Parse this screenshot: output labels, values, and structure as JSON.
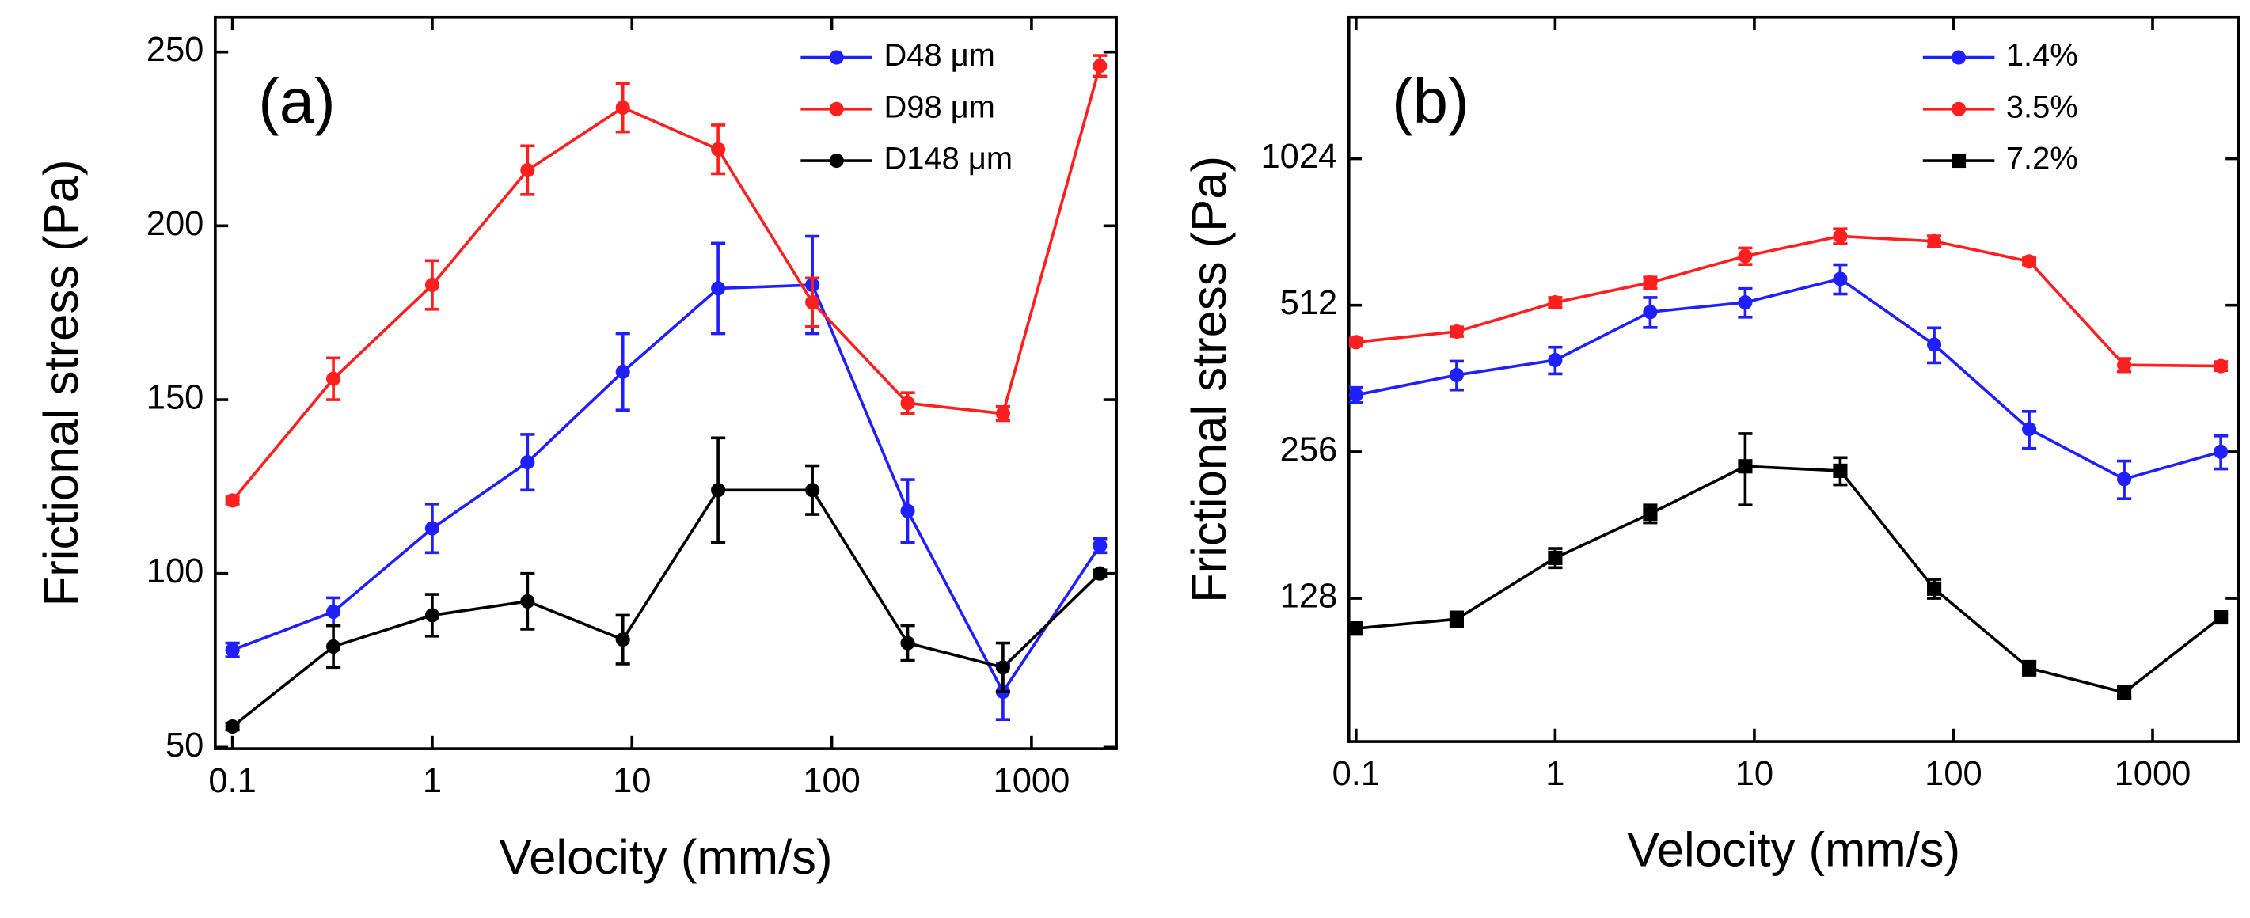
{
  "chart_data": [
    {
      "type": "line",
      "annotation": "(a)",
      "x_label": "Velocity (mm/s)",
      "y_label": "Frictional stress (Pa)",
      "xscale": "log",
      "yscale": "linear",
      "xlim": [
        0.082,
        2660
      ],
      "ylim": [
        49.6,
        260
      ],
      "xticks": [
        0.1,
        1,
        10,
        100,
        1000
      ],
      "yticks": [
        50,
        100,
        150,
        200,
        250
      ],
      "legend": "upper right",
      "x": [
        0.1,
        0.32,
        1,
        3,
        9,
        27,
        80,
        240,
        720,
        2200
      ],
      "series": [
        {
          "name": "D48 μm",
          "color": "#1f1fff",
          "marker": "circle",
          "values": [
            78,
            89,
            113,
            132,
            158,
            182,
            183,
            118,
            66,
            108
          ],
          "errors": [
            2,
            4,
            7,
            8,
            11,
            13,
            14,
            9,
            8,
            2
          ]
        },
        {
          "name": "D98 μm",
          "color": "#ff1f1f",
          "marker": "circle",
          "values": [
            121,
            156,
            183,
            216,
            234,
            222,
            178,
            149,
            146,
            246
          ],
          "errors": [
            1,
            6,
            7,
            7,
            7,
            7,
            7,
            3,
            2,
            3
          ]
        },
        {
          "name": "D148 μm",
          "color": "#000000",
          "marker": "circle",
          "values": [
            56,
            79,
            88,
            92,
            81,
            124,
            124,
            80,
            73,
            100
          ],
          "errors": [
            1,
            6,
            6,
            8,
            7,
            15,
            7,
            5,
            7,
            1
          ]
        }
      ]
    },
    {
      "type": "line",
      "annotation": "(b)",
      "x_label": "Velocity (mm/s)",
      "y_label": "Frictional stress (Pa)",
      "xscale": "log",
      "yscale": "log2",
      "xlim": [
        0.092,
        2700
      ],
      "ylim": [
        65,
        2000
      ],
      "xticks": [
        0.1,
        1,
        10,
        100,
        1000
      ],
      "yticks": [
        128,
        256,
        512,
        1024
      ],
      "legend": "upper right",
      "x": [
        0.1,
        0.32,
        1,
        3,
        9,
        27,
        80,
        240,
        720,
        2200
      ],
      "series": [
        {
          "name": "1.4%",
          "color": "#1f1fff",
          "marker": "circle",
          "values": [
            335,
            368,
            395,
            496,
            519,
            580,
            425,
            285,
            225,
            256
          ],
          "errors": [
            12,
            25,
            25,
            35,
            35,
            40,
            35,
            25,
            20,
            20
          ]
        },
        {
          "name": "3.5%",
          "color": "#ff1f1f",
          "marker": "circle",
          "values": [
            430,
            452,
            519,
            570,
            646,
            710,
            693,
            630,
            386,
            384
          ],
          "errors": [
            8,
            10,
            12,
            15,
            25,
            25,
            18,
            10,
            12,
            8
          ]
        },
        {
          "name": "7.2%",
          "color": "#000000",
          "marker": "square",
          "values": [
            111,
            116,
            155,
            191,
            239,
            234,
            134,
            92,
            82,
            117
          ],
          "errors": [
            3,
            4,
            7,
            8,
            40,
            15,
            6,
            3,
            2,
            2
          ]
        }
      ]
    }
  ]
}
